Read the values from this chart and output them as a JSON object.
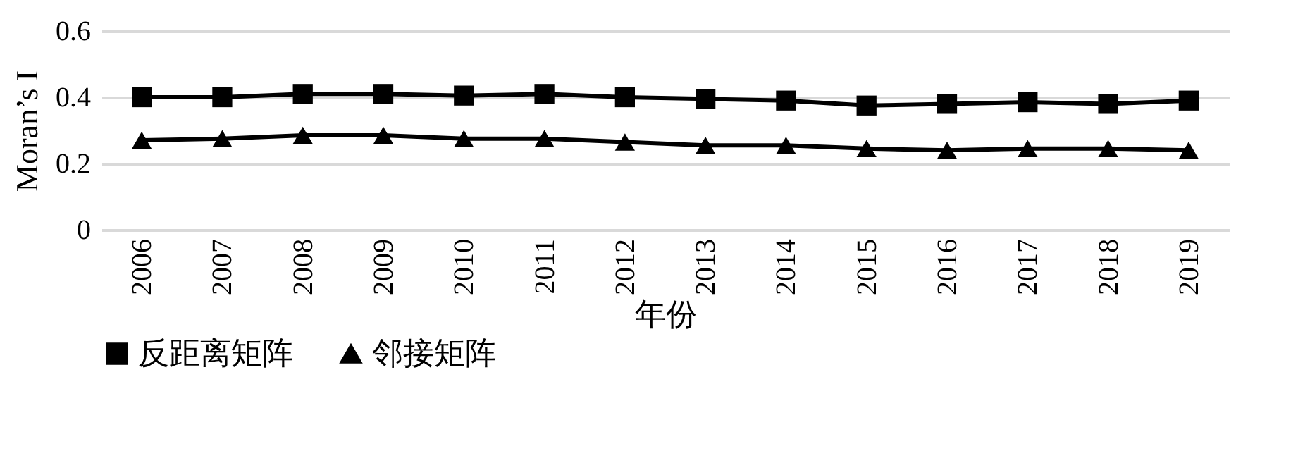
{
  "chart_data": {
    "type": "line",
    "xlabel": "年份",
    "ylabel": "Moran’s I",
    "categories": [
      "2006",
      "2007",
      "2008",
      "2009",
      "2010",
      "2011",
      "2012",
      "2013",
      "2014",
      "2015",
      "2016",
      "2017",
      "2018",
      "2019"
    ],
    "ylim": [
      0,
      0.6
    ],
    "yticks": [
      0,
      0.2,
      0.4,
      0.6
    ],
    "grid": "y",
    "legend": "bottom",
    "line_style": "solid",
    "series": [
      {
        "name": "反距离矩阵",
        "color": "#000000",
        "marker": "square",
        "values": [
          0.4,
          0.4,
          0.41,
          0.41,
          0.405,
          0.41,
          0.4,
          0.395,
          0.39,
          0.375,
          0.38,
          0.385,
          0.38,
          0.39
        ]
      },
      {
        "name": "邻接矩阵",
        "color": "#000000",
        "marker": "triangle",
        "values": [
          0.27,
          0.275,
          0.285,
          0.285,
          0.275,
          0.275,
          0.265,
          0.255,
          0.255,
          0.245,
          0.24,
          0.245,
          0.245,
          0.24
        ]
      }
    ]
  }
}
